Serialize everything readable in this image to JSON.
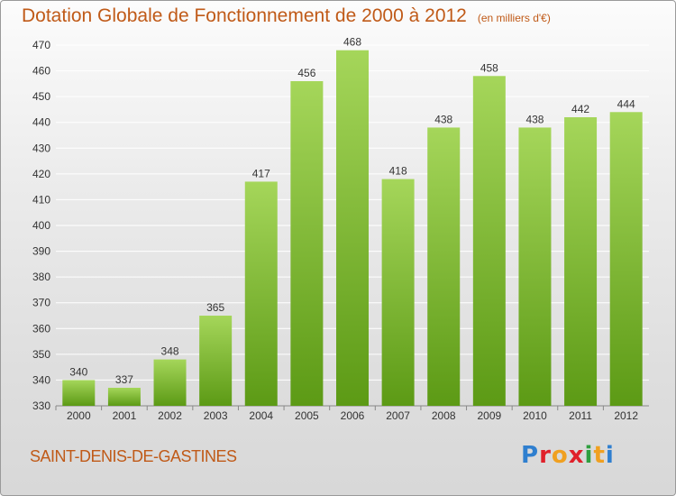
{
  "title": "Dotation Globale de Fonctionnement de 2000 à 2012",
  "unit_note": "(en milliers d'€)",
  "commune": "SAINT-DENIS-DE-GASTINES",
  "logo": {
    "letters": [
      "P",
      "r",
      "o",
      "x",
      "i",
      "t",
      "i"
    ],
    "colors": [
      "#2f7fcf",
      "#e0202a",
      "#f0a020",
      "#e0202a",
      "#2f9f3f",
      "#f0a020",
      "#2f7fcf"
    ]
  },
  "colors": {
    "bar_light": "#a5d65a",
    "bar_dark": "#5c9a15",
    "title": "#c05a18"
  },
  "chart_data": {
    "type": "bar",
    "categories": [
      "2000",
      "2001",
      "2002",
      "2003",
      "2004",
      "2005",
      "2006",
      "2007",
      "2008",
      "2009",
      "2010",
      "2011",
      "2012"
    ],
    "values": [
      340,
      337,
      348,
      365,
      417,
      456,
      468,
      418,
      438,
      458,
      438,
      442,
      444
    ],
    "ylim": [
      330,
      470
    ],
    "yticks": [
      330,
      340,
      350,
      360,
      370,
      380,
      390,
      400,
      410,
      420,
      430,
      440,
      450,
      460,
      470
    ],
    "grid": true
  }
}
